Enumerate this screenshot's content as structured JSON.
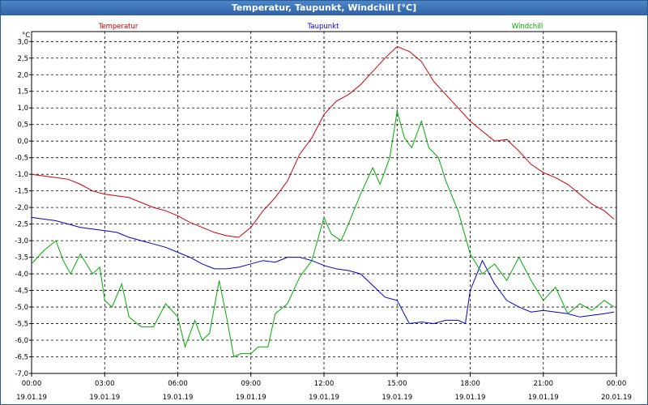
{
  "window": {
    "title": "Temperatur, Taupunkt, Windchill [°C]"
  },
  "chart_data": {
    "type": "line",
    "title": "Temperatur, Taupunkt, Windchill [°C]",
    "ylabel": "°C",
    "ylim": [
      -7.0,
      3.3
    ],
    "xlim": [
      0,
      24
    ],
    "grid": true,
    "y_ticks": [
      "3,0",
      "2,5",
      "2,0",
      "1,5",
      "1,0",
      "0,5",
      "0,0",
      "-0,5",
      "-1,0",
      "-1,5",
      "-2,0",
      "-2,5",
      "-3,0",
      "-3,5",
      "-4,0",
      "-4,5",
      "-5,0",
      "-5,5",
      "-6,0",
      "-6,5",
      "-7,0"
    ],
    "y_tick_values": [
      3.0,
      2.5,
      2.0,
      1.5,
      1.0,
      0.5,
      0.0,
      -0.5,
      -1.0,
      -1.5,
      -2.0,
      -2.5,
      -3.0,
      -3.5,
      -4.0,
      -4.5,
      -5.0,
      -5.5,
      -6.0,
      -6.5,
      -7.0
    ],
    "x_ticks": [
      {
        "time": "00:00",
        "date": "19.01.19",
        "hour": 0
      },
      {
        "time": "03:00",
        "date": "19.01.19",
        "hour": 3
      },
      {
        "time": "06:00",
        "date": "19.01.19",
        "hour": 6
      },
      {
        "time": "09:00",
        "date": "19.01.19",
        "hour": 9
      },
      {
        "time": "12:00",
        "date": "19.01.19",
        "hour": 12
      },
      {
        "time": "15:00",
        "date": "19.01.19",
        "hour": 15
      },
      {
        "time": "18:00",
        "date": "19.01.19",
        "hour": 18
      },
      {
        "time": "21:00",
        "date": "19.01.19",
        "hour": 21
      },
      {
        "time": "00:00",
        "date": "20.01.19",
        "hour": 24
      }
    ],
    "series": [
      {
        "name": "Temperatur",
        "color": "#cc0000",
        "x": [
          0,
          0.5,
          1,
          1.5,
          2,
          2.5,
          3,
          3.5,
          4,
          4.5,
          5,
          5.5,
          6,
          6.5,
          7,
          7.5,
          8,
          8.5,
          9,
          9.5,
          10,
          10.5,
          11,
          11.5,
          12,
          12.5,
          13,
          13.5,
          14,
          14.5,
          15,
          15.5,
          16,
          16.5,
          17,
          17.5,
          18,
          18.5,
          19,
          19.5,
          20,
          20.5,
          21,
          21.5,
          22,
          22.5,
          23,
          23.5,
          23.9
        ],
        "y": [
          -1.0,
          -1.05,
          -1.1,
          -1.15,
          -1.3,
          -1.5,
          -1.6,
          -1.65,
          -1.7,
          -1.85,
          -2.0,
          -2.1,
          -2.25,
          -2.45,
          -2.6,
          -2.75,
          -2.85,
          -2.9,
          -2.6,
          -2.1,
          -1.7,
          -1.2,
          -0.4,
          0.1,
          0.8,
          1.2,
          1.4,
          1.7,
          2.1,
          2.5,
          2.85,
          2.7,
          2.4,
          1.8,
          1.4,
          1.0,
          0.6,
          0.3,
          0.0,
          0.05,
          -0.3,
          -0.7,
          -0.95,
          -1.1,
          -1.3,
          -1.6,
          -1.9,
          -2.1,
          -2.35
        ]
      },
      {
        "name": "Taupunkt",
        "color": "#0000cc",
        "x": [
          0,
          0.5,
          1,
          1.5,
          2,
          2.5,
          3,
          3.5,
          4,
          4.5,
          5,
          5.5,
          6,
          6.5,
          7,
          7.5,
          8,
          8.5,
          9,
          9.5,
          10,
          10.5,
          11,
          11.5,
          12,
          12.5,
          13,
          13.5,
          14,
          14.5,
          15,
          15.5,
          16,
          16.5,
          17,
          17.5,
          17.8,
          18,
          18.5,
          19,
          19.5,
          20,
          20.5,
          21,
          21.5,
          22,
          22.5,
          23,
          23.5,
          23.9
        ],
        "y": [
          -2.3,
          -2.35,
          -2.4,
          -2.5,
          -2.6,
          -2.65,
          -2.7,
          -2.75,
          -2.9,
          -3.0,
          -3.1,
          -3.2,
          -3.35,
          -3.5,
          -3.7,
          -3.85,
          -3.85,
          -3.8,
          -3.7,
          -3.6,
          -3.65,
          -3.5,
          -3.5,
          -3.6,
          -3.75,
          -3.85,
          -3.9,
          -4.0,
          -4.35,
          -4.7,
          -4.8,
          -5.5,
          -5.45,
          -5.5,
          -5.4,
          -5.4,
          -5.5,
          -4.5,
          -3.6,
          -4.3,
          -4.8,
          -5.0,
          -5.15,
          -5.1,
          -5.15,
          -5.2,
          -5.3,
          -5.25,
          -5.2,
          -5.15
        ]
      },
      {
        "name": "Windchill",
        "color": "#00aa00",
        "x": [
          0,
          0.5,
          1,
          1.3,
          1.6,
          2,
          2.5,
          2.8,
          3,
          3.3,
          3.7,
          4,
          4.5,
          5,
          5.5,
          6,
          6.3,
          6.7,
          7,
          7.3,
          7.7,
          8,
          8.3,
          8.6,
          9,
          9.3,
          9.7,
          10,
          10.5,
          11,
          11.5,
          12,
          12.3,
          12.7,
          13,
          13.5,
          14,
          14.3,
          14.7,
          15,
          15.3,
          15.6,
          16,
          16.3,
          16.7,
          17,
          17.5,
          18,
          18.5,
          19,
          19.5,
          20,
          20.5,
          21,
          21.5,
          22,
          22.5,
          23,
          23.5,
          23.9
        ],
        "y": [
          -3.7,
          -3.3,
          -3.0,
          -3.6,
          -4.0,
          -3.4,
          -4.0,
          -3.8,
          -4.8,
          -5.0,
          -4.3,
          -5.3,
          -5.6,
          -5.6,
          -4.9,
          -5.3,
          -6.2,
          -5.4,
          -6.0,
          -5.8,
          -4.2,
          -5.3,
          -6.5,
          -6.4,
          -6.4,
          -6.2,
          -6.2,
          -5.2,
          -4.9,
          -4.1,
          -3.6,
          -2.3,
          -2.8,
          -3.0,
          -2.5,
          -1.6,
          -0.8,
          -1.3,
          -0.5,
          0.9,
          0.1,
          -0.2,
          0.6,
          -0.2,
          -0.5,
          -1.2,
          -2.1,
          -3.4,
          -4.0,
          -3.7,
          -4.2,
          -3.5,
          -4.2,
          -4.8,
          -4.4,
          -5.2,
          -4.9,
          -5.1,
          -4.8,
          -5.0
        ]
      }
    ]
  }
}
